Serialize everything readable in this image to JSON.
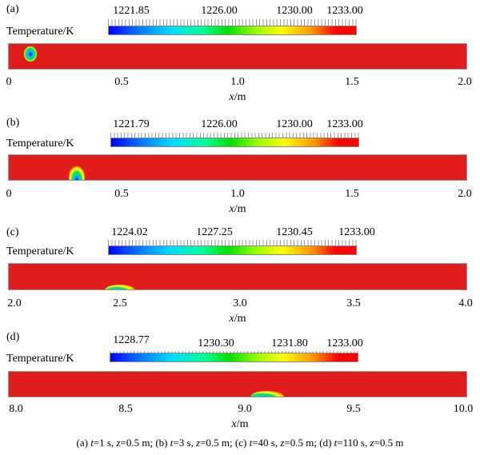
{
  "colorbar_label": "Temperature/K",
  "axis_label_var": "x",
  "axis_label_unit": "/m",
  "panels": [
    {
      "label": "(a)",
      "colorbar_ticks": [
        "1221.85",
        "1226.00",
        "1230.00",
        "1233.00"
      ],
      "x_ticks": [
        "0",
        "0.5",
        "1.0",
        "1.5",
        "2.0"
      ]
    },
    {
      "label": "(b)",
      "colorbar_ticks": [
        "1221.79",
        "1226.00",
        "1230.00",
        "1233.00"
      ],
      "x_ticks": [
        "0",
        "0.5",
        "1.0",
        "1.5",
        "2.0"
      ]
    },
    {
      "label": "(c)",
      "colorbar_ticks": [
        "1224.02",
        "1227.25",
        "1230.45",
        "1233.00"
      ],
      "x_ticks": [
        "2.0",
        "2.5",
        "3.0",
        "3.5",
        "4.0"
      ]
    },
    {
      "label": "(d)",
      "colorbar_ticks": [
        "1228.77",
        "1230.30",
        "1231.80",
        "1233.00"
      ],
      "x_ticks": [
        "8.0",
        "8.5",
        "9.0",
        "9.5",
        "10.0"
      ]
    }
  ],
  "caption": {
    "a_label": "(a) ",
    "a_t": "t",
    "a_text": "=1 s, ",
    "a_z": "z",
    "a_zval": "=0.5 m; ",
    "b_label": "(b) ",
    "b_t": "t",
    "b_text": "=3 s, ",
    "b_z": "z",
    "b_zval": "=0.5 m; ",
    "c_label": "(c) ",
    "c_t": "t",
    "c_text": "=40 s, ",
    "c_z": "z",
    "c_zval": "=0.5 m; ",
    "d_label": "(d) ",
    "d_t": "t",
    "d_text": "=110 s, ",
    "d_z": "z",
    "d_zval": "=0.5 m"
  },
  "colors": {
    "field_background": "#e11c1c",
    "colormap": [
      "#0000ff",
      "#00dcff",
      "#00e000",
      "#ffff00",
      "#ff0000"
    ]
  }
}
